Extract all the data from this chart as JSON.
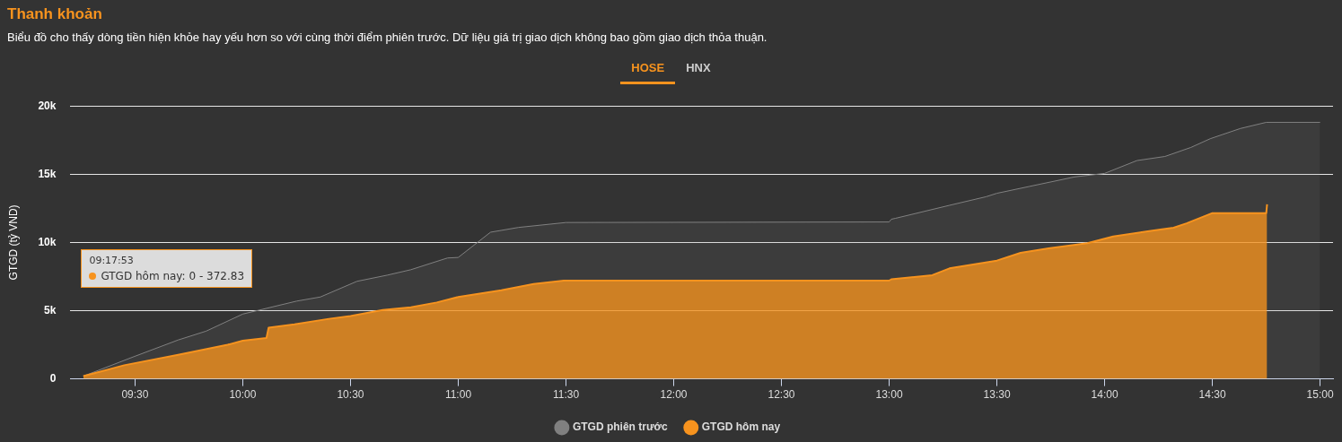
{
  "chart_data": {
    "type": "area",
    "title": "Thanh khoản",
    "subtitle": "Biểu đồ cho thấy dòng tiền hiện khỏe hay yếu hơn so với cùng thời điểm phiên trước. Dữ liệu giá trị giao dịch không bao gồm giao dịch thỏa thuận.",
    "ylabel": "GTGD (tỷ VND)",
    "series": [
      {
        "name": "GTGD phiên trước",
        "color": "#808080",
        "x": [
          9.26,
          9.49,
          9.7,
          9.83,
          10.0,
          10.25,
          10.36,
          10.53,
          10.67,
          10.78,
          10.95,
          11.0,
          11.15,
          11.28,
          11.5,
          13.0,
          13.01,
          13.03,
          13.28,
          13.45,
          13.5,
          13.65,
          13.86,
          14.0,
          14.15,
          14.28,
          14.4,
          14.49,
          14.63,
          14.75,
          15.0
        ],
        "values": [
          200,
          1600,
          2850,
          3500,
          4750,
          5700,
          6000,
          7150,
          7600,
          8000,
          8860,
          8900,
          10750,
          11100,
          11460,
          11500,
          11700,
          11770,
          12720,
          13350,
          13600,
          14100,
          14800,
          15060,
          16000,
          16300,
          16960,
          17600,
          18350,
          18800,
          18800
        ]
      },
      {
        "name": "GTGD hôm nay",
        "color": "#f7931e",
        "x": [
          9.26,
          9.3,
          9.45,
          9.7,
          9.93,
          10.0,
          10.11,
          10.12,
          10.24,
          10.4,
          10.5,
          10.65,
          10.78,
          10.9,
          11.0,
          11.2,
          11.35,
          11.49,
          13.0,
          13.01,
          13.2,
          13.28,
          13.5,
          13.61,
          13.74,
          13.92,
          14.04,
          14.2,
          14.32,
          14.38,
          14.5,
          14.75,
          14.754
        ],
        "values": [
          200,
          372.83,
          1000,
          1770,
          2500,
          2800,
          3000,
          3750,
          4000,
          4400,
          4600,
          5050,
          5250,
          5600,
          6000,
          6500,
          6960,
          7200,
          7200,
          7300,
          7600,
          8100,
          8670,
          9240,
          9560,
          9940,
          10440,
          10820,
          11080,
          11400,
          12150,
          12150,
          12800
        ]
      }
    ],
    "xlim": [
      9.2,
      15.06
    ],
    "xticks": [
      {
        "value": 9.5,
        "label": "09:30"
      },
      {
        "value": 10,
        "label": "10:00"
      },
      {
        "value": 10.5,
        "label": "10:30"
      },
      {
        "value": 11,
        "label": "11:00"
      },
      {
        "value": 11.5,
        "label": "11:30"
      },
      {
        "value": 12,
        "label": "12:00"
      },
      {
        "value": 12.5,
        "label": "12:30"
      },
      {
        "value": 13,
        "label": "13:00"
      },
      {
        "value": 13.5,
        "label": "13:30"
      },
      {
        "value": 14,
        "label": "14:00"
      },
      {
        "value": 14.5,
        "label": "14:30"
      },
      {
        "value": 15,
        "label": "15:00"
      }
    ],
    "ylim": [
      0,
      20000
    ],
    "yticks": [
      0,
      {
        "value": 5000,
        "label": "5k"
      },
      {
        "value": 10000,
        "label": "10k"
      },
      {
        "value": 15000,
        "label": "15k"
      },
      {
        "value": 20000,
        "label": "20k"
      }
    ],
    "grid": "y",
    "legend": "bottom",
    "marker": "none",
    "annotations": [
      "HOSE",
      "HNX",
      "09:17:53\nGTGD hôm nay: 0 - 372.83"
    ]
  }
}
